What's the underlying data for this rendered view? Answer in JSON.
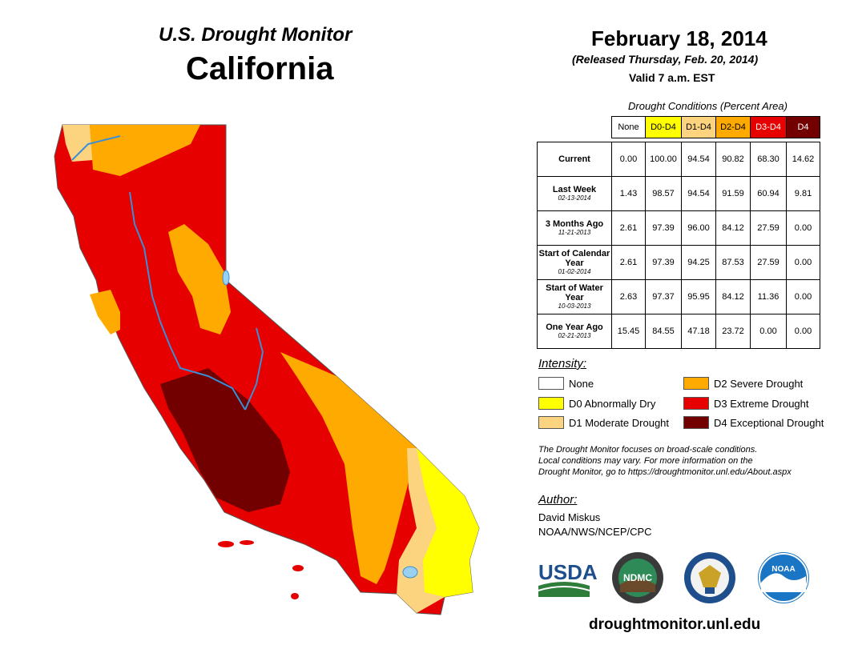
{
  "header": {
    "title": "U.S. Drought Monitor",
    "state": "California",
    "date": "February 18, 2014",
    "released": "(Released Thursday, Feb. 20, 2014)",
    "valid": "Valid 7 a.m. EST"
  },
  "table": {
    "caption": "Drought Conditions (Percent Area)",
    "columns": [
      "None",
      "D0-D4",
      "D1-D4",
      "D2-D4",
      "D3-D4",
      "D4"
    ],
    "column_colors": [
      "#ffffff",
      "#ffff00",
      "#fcd37f",
      "#ffaa00",
      "#e60000",
      "#730000"
    ],
    "rows": [
      {
        "label": "Current",
        "date": "",
        "values": [
          "0.00",
          "100.00",
          "94.54",
          "90.82",
          "68.30",
          "14.62"
        ]
      },
      {
        "label": "Last Week",
        "date": "02-13-2014",
        "values": [
          "1.43",
          "98.57",
          "94.54",
          "91.59",
          "60.94",
          "9.81"
        ]
      },
      {
        "label": "3 Months Ago",
        "date": "11-21-2013",
        "values": [
          "2.61",
          "97.39",
          "96.00",
          "84.12",
          "27.59",
          "0.00"
        ]
      },
      {
        "label": "Start of Calendar Year",
        "date": "01-02-2014",
        "values": [
          "2.61",
          "97.39",
          "94.25",
          "87.53",
          "27.59",
          "0.00"
        ]
      },
      {
        "label": "Start of Water Year",
        "date": "10-03-2013",
        "values": [
          "2.63",
          "97.37",
          "95.95",
          "84.12",
          "11.36",
          "0.00"
        ]
      },
      {
        "label": "One Year Ago",
        "date": "02-21-2013",
        "values": [
          "15.45",
          "84.55",
          "47.18",
          "23.72",
          "0.00",
          "0.00"
        ]
      }
    ]
  },
  "legend": {
    "title": "Intensity:",
    "items": [
      {
        "label": "None",
        "color": "#ffffff"
      },
      {
        "label": "D0 Abnormally Dry",
        "color": "#ffff00"
      },
      {
        "label": "D1 Moderate Drought",
        "color": "#fcd37f"
      },
      {
        "label": "D2 Severe Drought",
        "color": "#ffaa00"
      },
      {
        "label": "D3 Extreme Drought",
        "color": "#e60000"
      },
      {
        "label": "D4 Exceptional Drought",
        "color": "#730000"
      }
    ]
  },
  "note": {
    "line1": "The Drought Monitor focuses on broad-scale conditions.",
    "line2": "Local conditions may vary. For more information on the",
    "line3": "Drought Monitor, go to https://droughtmonitor.unl.edu/About.aspx"
  },
  "author": {
    "title": "Author:",
    "name": "David Miskus",
    "org": "NOAA/NWS/NCEP/CPC"
  },
  "logos": {
    "usda": "USDA",
    "ndmc": "NDMC",
    "noaa": "NOAA"
  },
  "website": "droughtmonitor.unl.edu"
}
